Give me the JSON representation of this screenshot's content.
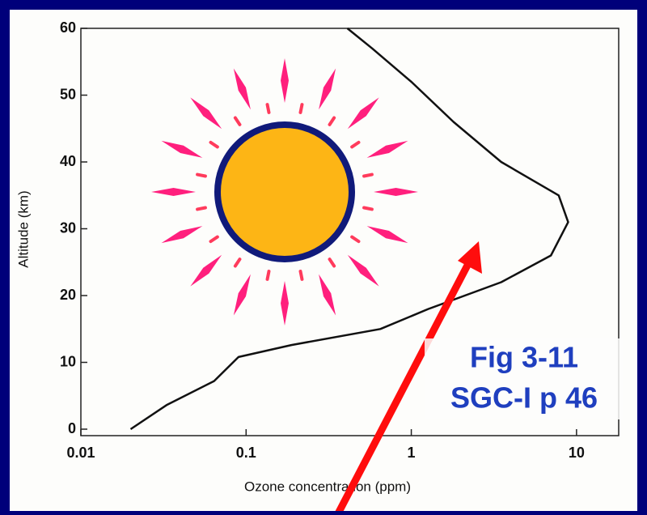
{
  "chart_data": {
    "type": "line",
    "x_label": "Ozone concentration (ppm)",
    "y_label": "Altitude (km)",
    "x_scale": "log",
    "xlim": [
      0.01,
      18
    ],
    "xticks": [
      0.01,
      0.1,
      1,
      10
    ],
    "ylim": [
      0,
      60
    ],
    "yticks": [
      0,
      10,
      20,
      30,
      40,
      50,
      60
    ],
    "grid": false,
    "x": [
      0.02,
      0.033,
      0.064,
      0.09,
      0.188,
      0.65,
      1.27,
      3.5,
      7.0,
      8.9,
      7.8,
      3.5,
      1.8,
      1.0,
      0.58,
      0.41
    ],
    "series": [
      {
        "color": "#111111",
        "values": [
          0,
          3.6,
          7.2,
          10.8,
          12.6,
          15,
          18,
          22,
          26,
          31,
          35,
          40,
          46,
          52,
          57,
          60
        ]
      }
    ],
    "annotations": [
      "Fig 3-11",
      "SGC-I p 46"
    ]
  }
}
